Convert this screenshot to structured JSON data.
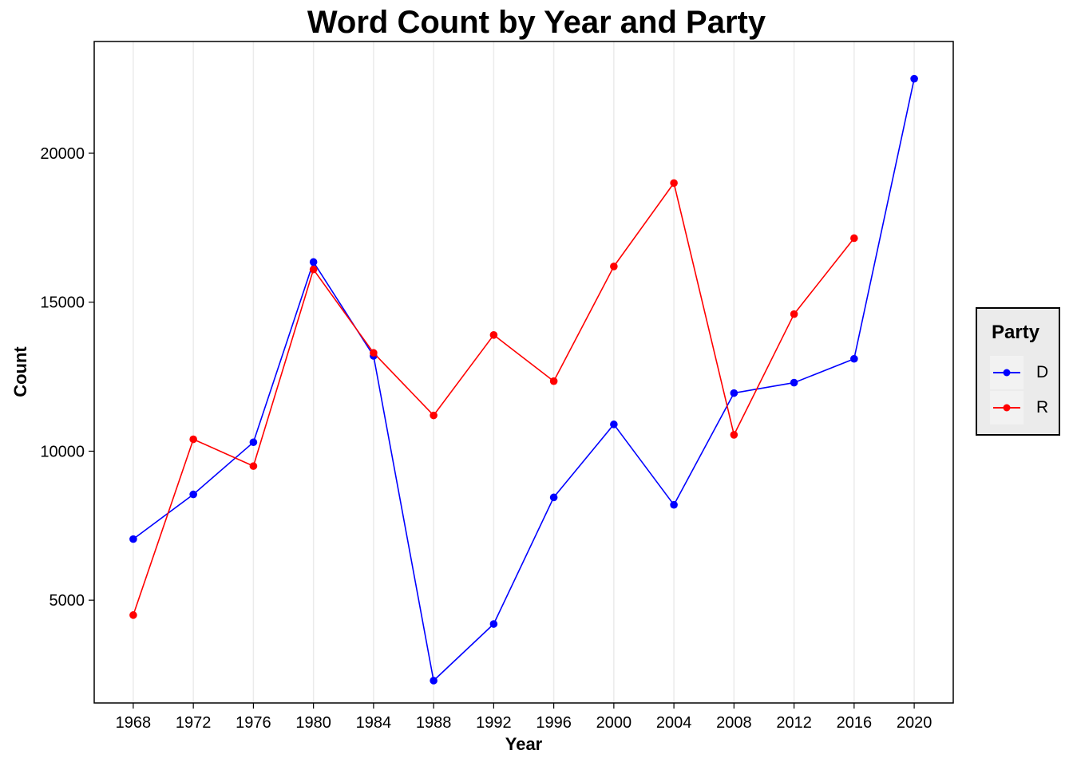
{
  "chart_data": {
    "type": "line",
    "title": "Word Count by Year and Party",
    "xlabel": "Year",
    "ylabel": "Count",
    "x_ticks": [
      1968,
      1972,
      1976,
      1980,
      1984,
      1988,
      1992,
      1996,
      2000,
      2004,
      2008,
      2012,
      2016,
      2020
    ],
    "y_ticks": [
      5000,
      10000,
      15000,
      20000
    ],
    "xlim": [
      1965.4,
      2022.6
    ],
    "ylim": [
      1550,
      23750
    ],
    "grid": "vertical major gridlines",
    "legend": {
      "title": "Party",
      "position": "right",
      "entries": [
        {
          "label": "D",
          "color": "#0000ff"
        },
        {
          "label": "R",
          "color": "#ff0000"
        }
      ]
    },
    "series": [
      {
        "name": "D",
        "color": "#0000ff",
        "x": [
          1968,
          1972,
          1976,
          1980,
          1984,
          1988,
          1992,
          1996,
          2000,
          2004,
          2008,
          2012,
          2016,
          2020
        ],
        "y": [
          7050,
          8550,
          10300,
          16350,
          13200,
          2300,
          4200,
          8450,
          10900,
          8200,
          11950,
          12300,
          13100,
          22500
        ]
      },
      {
        "name": "R",
        "color": "#ff0000",
        "x": [
          1968,
          1972,
          1976,
          1980,
          1984,
          1988,
          1992,
          1996,
          2000,
          2004,
          2008,
          2012,
          2016
        ],
        "y": [
          4500,
          10400,
          9500,
          16100,
          13300,
          11200,
          13900,
          12350,
          16200,
          19000,
          10550,
          14600,
          17150
        ]
      }
    ]
  }
}
